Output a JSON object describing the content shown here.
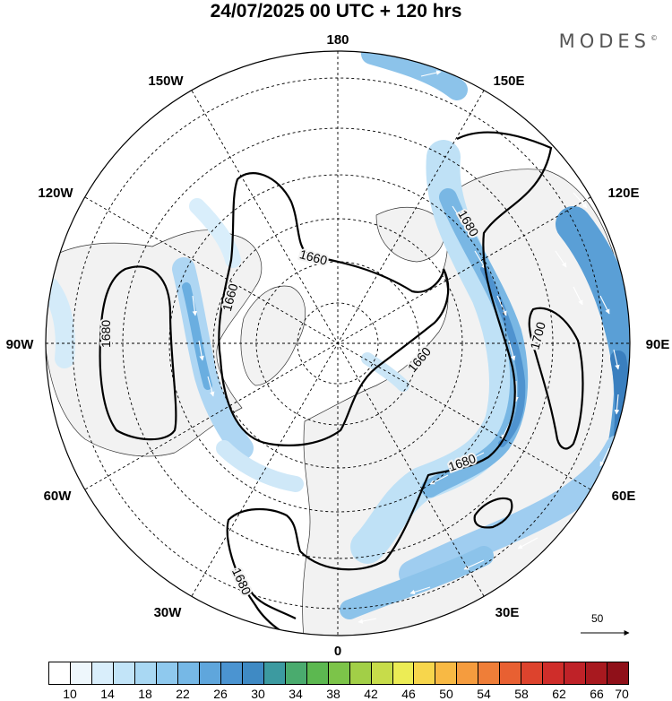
{
  "title": "24/07/2025  00 UTC  + 120 hrs",
  "brand": "MODES",
  "brand_mark": "©",
  "longitude_labels": [
    "180",
    "150E",
    "120E",
    "90E",
    "60E",
    "30E",
    "0",
    "30W",
    "60W",
    "90W",
    "120W",
    "150W"
  ],
  "contour_labels": [
    "1660",
    "1660",
    "1680",
    "1660",
    "1680",
    "1700",
    "1680",
    "1680"
  ],
  "vector_reference": "50",
  "colorbar": {
    "labels": [
      "10",
      "14",
      "18",
      "22",
      "26",
      "30",
      "34",
      "38",
      "42",
      "46",
      "50",
      "54",
      "58",
      "62",
      "66",
      "70"
    ],
    "colors": [
      "#ffffff",
      "#eef7fc",
      "#d9eefb",
      "#c2e4f8",
      "#a9d8f3",
      "#8fc9ee",
      "#76b8e6",
      "#5fa6dc",
      "#4b94d1",
      "#3f8ac4",
      "#3c9aa0",
      "#4aab6e",
      "#5cb850",
      "#7cc449",
      "#a2cf47",
      "#c7dc4a",
      "#ecec55",
      "#f7d64c",
      "#f8b944",
      "#f59c3e",
      "#ef7e38",
      "#e86032",
      "#dd432d",
      "#cf2d2a",
      "#bf2228",
      "#a8191f",
      "#8f1019"
    ]
  }
}
